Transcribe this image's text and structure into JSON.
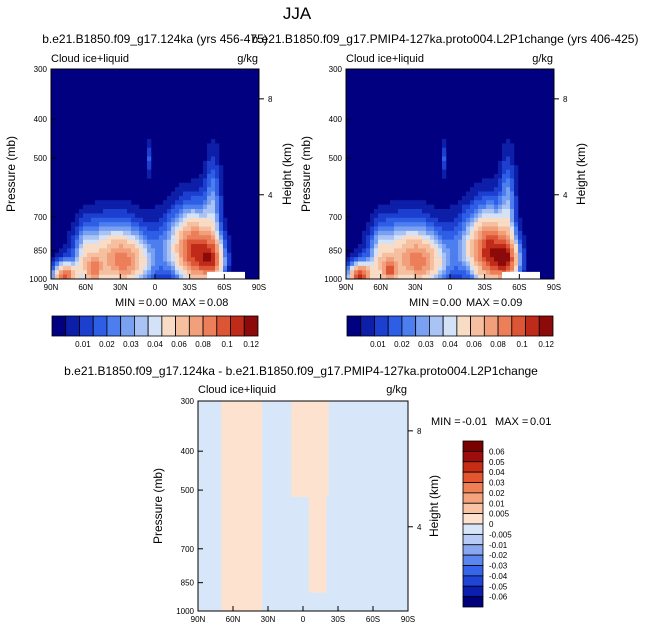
{
  "page": {
    "title": "JJA"
  },
  "colors": {
    "background": "#ffffff",
    "frame": "#000000",
    "seq_palette": [
      "#000080",
      "#0d1fa8",
      "#1c3fd0",
      "#2f5ee6",
      "#4d7ef0",
      "#7aa0f2",
      "#a9c3f5",
      "#d4e2f8",
      "#f9dcc6",
      "#f6c0a0",
      "#f2a07c",
      "#ec7e5a",
      "#dc5536",
      "#c02a18",
      "#8c0a0a"
    ],
    "diff_palette": [
      "#00007f",
      "#0a1fb0",
      "#1f44d6",
      "#3565ea",
      "#5b86f0",
      "#8aa8f2",
      "#b7cbf6",
      "#d8e6fa",
      "#fde3cf",
      "#f8c4a4",
      "#f4a37c",
      "#ef7f55",
      "#e4562f",
      "#c52d15",
      "#9e0c0c",
      "#7a0000"
    ]
  },
  "chart_data": [
    {
      "type": "heatmap",
      "title": "b.e21.B1850.f09_g17.124ka (yrs 456-475)",
      "left_string": "Cloud ice+liquid",
      "right_string": "g/kg",
      "xlabel": "",
      "ylabel": "Pressure (mb)",
      "ylabel_right": "Height (km)",
      "x_ticks": [
        "90N",
        "60N",
        "30N",
        "0",
        "30S",
        "60S",
        "90S"
      ],
      "y_ticks": [
        "300",
        "400",
        "500",
        "700",
        "850",
        "1000"
      ],
      "y_right_ticks": [
        "8",
        "4"
      ],
      "ylim": [
        1000,
        300
      ],
      "stats": {
        "min_label": "MIN =",
        "min": "0.00",
        "max_label": "MAX =",
        "max": "0.08"
      },
      "features": [
        {
          "lat": 35,
          "p": 880,
          "dlat": 28,
          "dp": 160,
          "v": 0.055
        },
        {
          "lat": 22,
          "p": 920,
          "dlat": 18,
          "dp": 110,
          "v": 0.03
        },
        {
          "lat": -35,
          "p": 860,
          "dlat": 14,
          "dp": 170,
          "v": 0.075
        },
        {
          "lat": -50,
          "p": 900,
          "dlat": 10,
          "dp": 120,
          "v": 0.07
        },
        {
          "lat": -20,
          "p": 830,
          "dlat": 18,
          "dp": 160,
          "v": 0.03
        },
        {
          "lat": -50,
          "p": 650,
          "dlat": 7,
          "dp": 160,
          "v": 0.025
        },
        {
          "lat": 78,
          "p": 985,
          "dlat": 10,
          "dp": 70,
          "v": 0.08
        },
        {
          "lat": 60,
          "p": 900,
          "dlat": 9,
          "dp": 150,
          "v": 0.025
        },
        {
          "lat": 52,
          "p": 960,
          "dlat": 6,
          "dp": 60,
          "v": 0.04
        },
        {
          "lat": 5,
          "p": 500,
          "dlat": 3,
          "dp": 50,
          "v": 0.015
        }
      ]
    },
    {
      "type": "heatmap",
      "title": "b.e21.B1850.f09_g17.PMIP4-127ka.proto004.L2P1change (yrs 406-425)",
      "left_string": "Cloud ice+liquid",
      "right_string": "g/kg",
      "xlabel": "",
      "ylabel": "Pressure (mb)",
      "ylabel_right": "Height (km)",
      "x_ticks": [
        "90N",
        "60N",
        "30N",
        "0",
        "30S",
        "60S",
        "90S"
      ],
      "y_ticks": [
        "300",
        "400",
        "500",
        "700",
        "850",
        "1000"
      ],
      "y_right_ticks": [
        "8",
        "4"
      ],
      "ylim": [
        1000,
        300
      ],
      "stats": {
        "min_label": "MIN =",
        "min": "0.00",
        "max_label": "MAX =",
        "max": "0.09"
      },
      "features": [
        {
          "lat": 35,
          "p": 880,
          "dlat": 28,
          "dp": 160,
          "v": 0.055
        },
        {
          "lat": 22,
          "p": 920,
          "dlat": 18,
          "dp": 110,
          "v": 0.03
        },
        {
          "lat": -35,
          "p": 860,
          "dlat": 14,
          "dp": 170,
          "v": 0.08
        },
        {
          "lat": -50,
          "p": 900,
          "dlat": 10,
          "dp": 120,
          "v": 0.075
        },
        {
          "lat": -20,
          "p": 830,
          "dlat": 18,
          "dp": 160,
          "v": 0.03
        },
        {
          "lat": -50,
          "p": 650,
          "dlat": 7,
          "dp": 160,
          "v": 0.025
        },
        {
          "lat": 78,
          "p": 985,
          "dlat": 10,
          "dp": 70,
          "v": 0.09
        },
        {
          "lat": 60,
          "p": 900,
          "dlat": 9,
          "dp": 150,
          "v": 0.025
        },
        {
          "lat": 52,
          "p": 960,
          "dlat": 6,
          "dp": 60,
          "v": 0.045
        },
        {
          "lat": 5,
          "p": 500,
          "dlat": 3,
          "dp": 50,
          "v": 0.015
        }
      ]
    },
    {
      "type": "heatmap",
      "title": "b.e21.B1850.f09_g17.124ka - b.e21.B1850.f09_g17.PMIP4-127ka.proto004.L2P1change",
      "left_string": "Cloud ice+liquid",
      "right_string": "g/kg",
      "xlabel": "",
      "ylabel": "Pressure (mb)",
      "ylabel_right": "Height (km)",
      "x_ticks": [
        "90N",
        "60N",
        "30N",
        "0",
        "30S",
        "60S",
        "90S"
      ],
      "y_ticks": [
        "300",
        "400",
        "500",
        "700",
        "850",
        "1000"
      ],
      "y_right_ticks": [
        "8",
        "4"
      ],
      "ylim": [
        1000,
        300
      ],
      "stats": {
        "min_label": "MIN =",
        "min": "-0.01",
        "max_label": "MAX =",
        "max": "0.01"
      },
      "regions_positive": [
        {
          "lat1": 70,
          "lat2": 35,
          "p1": 300,
          "p2": 1000
        },
        {
          "lat1": 10,
          "lat2": -22,
          "p1": 300,
          "p2": 520
        },
        {
          "lat1": -5,
          "lat2": -20,
          "p1": 520,
          "p2": 900
        },
        {
          "lat1": 70,
          "lat2": 55,
          "p1": 300,
          "p2": 330
        }
      ]
    }
  ],
  "colorbars": {
    "sequential": [
      "0.01",
      "0.02",
      "0.03",
      "0.04",
      "0.06",
      "0.08",
      "0.1",
      "0.12"
    ],
    "sequential_second": [
      "0.01",
      "0.02",
      "0.03",
      "0.04",
      "0.06",
      "0.08",
      "0.1",
      "0.12"
    ],
    "diverging": [
      "0.06",
      "0.05",
      "0.04",
      "0.03",
      "0.02",
      "0.01",
      "0.005",
      "0",
      "-0.005",
      "-0.01",
      "-0.02",
      "-0.03",
      "-0.04",
      "-0.05",
      "-0.06"
    ]
  }
}
